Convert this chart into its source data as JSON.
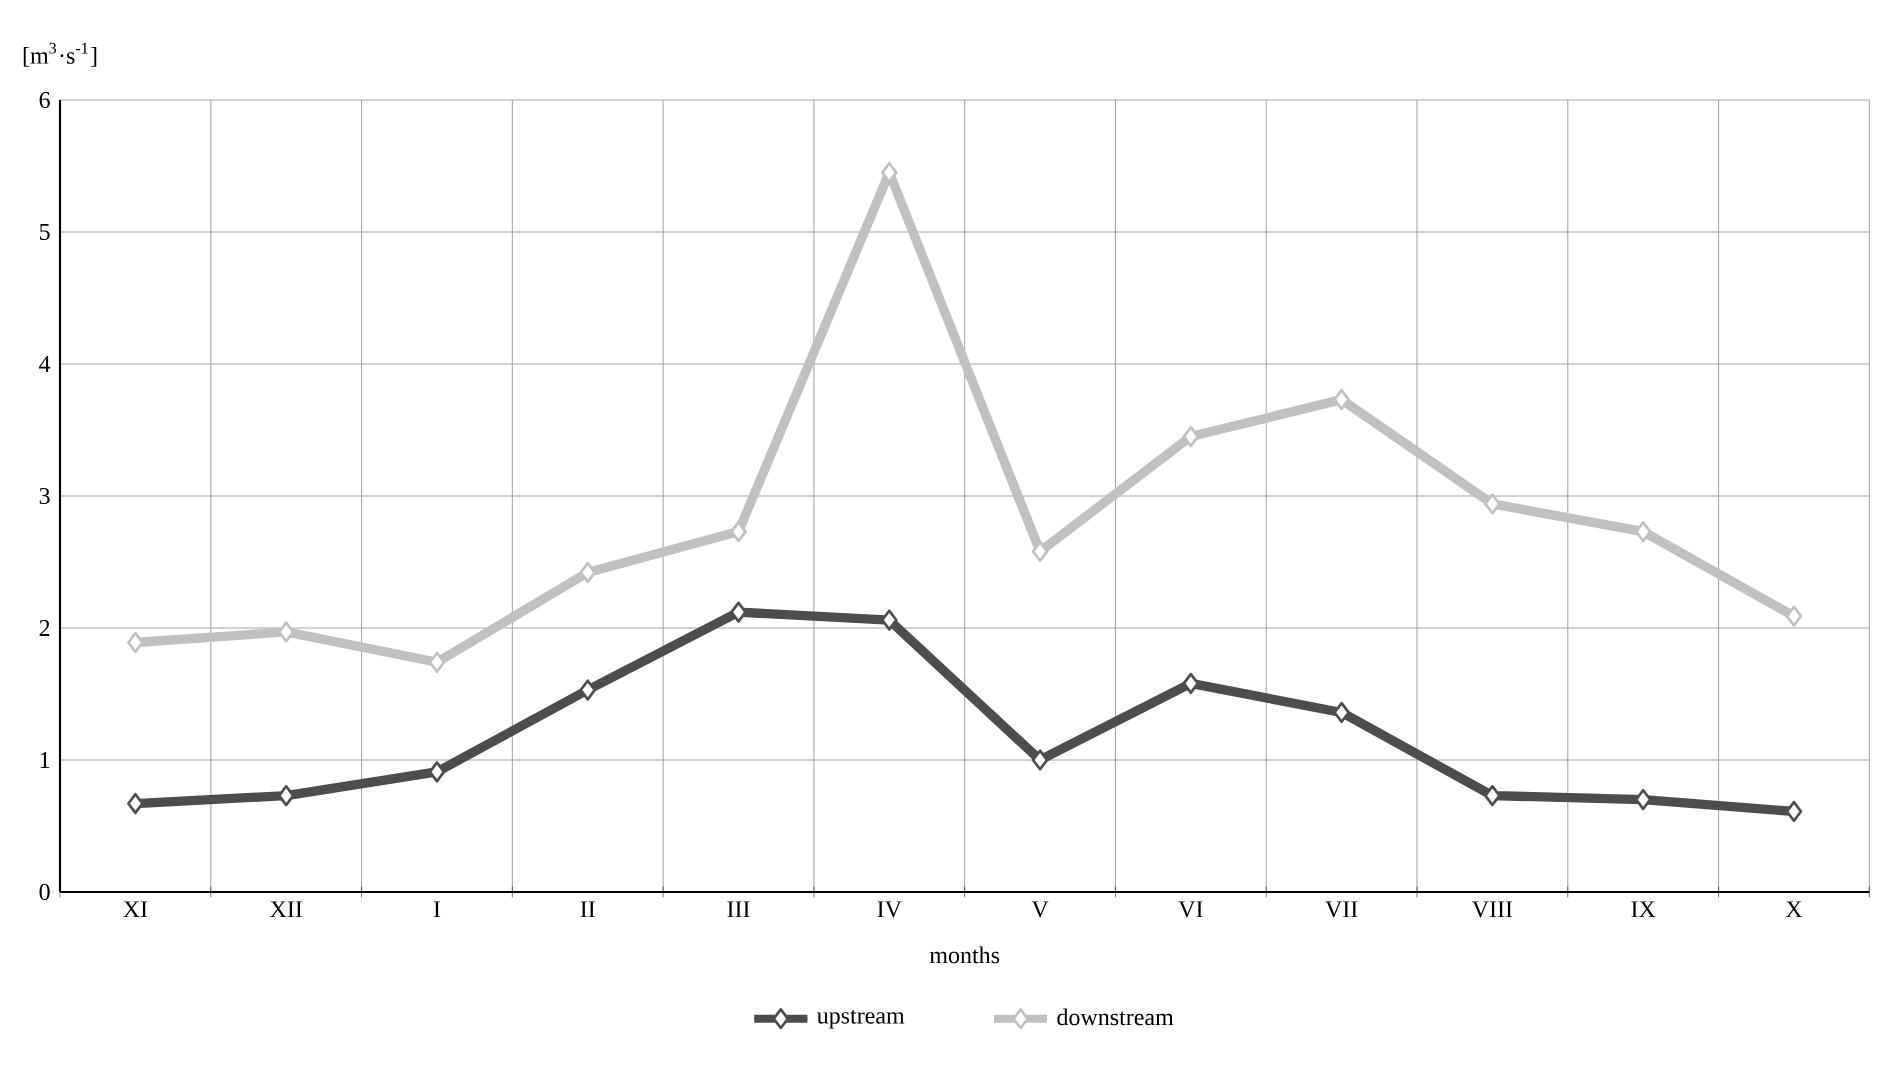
{
  "chart_data": {
    "type": "line",
    "xlabel": "months",
    "ylabel": "[m$^{3}$·s$^{-1}$]",
    "categories": [
      "XI",
      "XII",
      "I",
      "II",
      "III",
      "IV",
      "V",
      "VI",
      "VII",
      "VIII",
      "IX",
      "X"
    ],
    "series": [
      {
        "name": "upstream",
        "color": "#4d4d4d",
        "values": [
          0.67,
          0.73,
          0.91,
          1.53,
          2.12,
          2.06,
          1.0,
          1.58,
          1.36,
          0.73,
          0.7,
          0.61
        ]
      },
      {
        "name": "downstream",
        "color": "#c0c0c0",
        "values": [
          1.89,
          1.97,
          1.74,
          2.42,
          2.73,
          5.45,
          2.58,
          3.45,
          3.73,
          2.94,
          2.73,
          2.09
        ]
      }
    ],
    "ylim": [
      0,
      6
    ],
    "yticks": [
      0,
      1,
      2,
      3,
      4,
      5,
      6
    ],
    "grid": true,
    "legend": "bottom",
    "marker": "diamond",
    "line_style": "solid"
  }
}
